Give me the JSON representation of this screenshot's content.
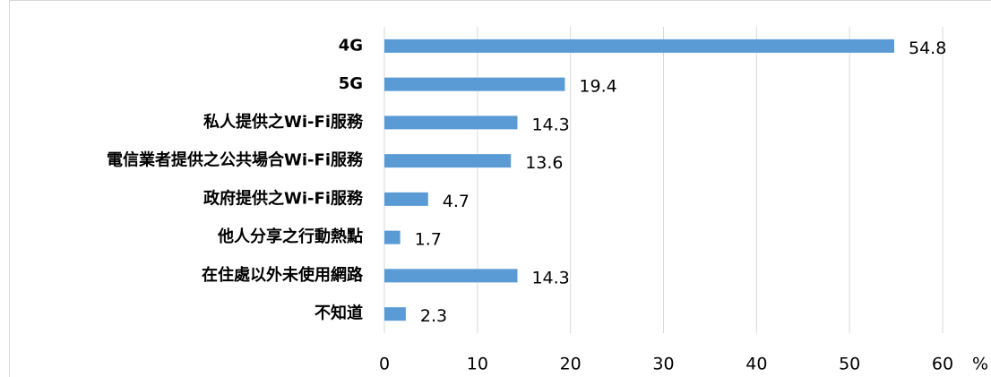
{
  "chart_data": {
    "type": "bar",
    "orientation": "horizontal",
    "categories": [
      "4G",
      "5G",
      "私人提供之Wi-Fi服務",
      "電信業者提供之公共場合Wi-Fi服務",
      "政府提供之Wi-Fi服務",
      "他人分享之行動熱點",
      "在住處以外未使用網路",
      "不知道"
    ],
    "values": [
      54.8,
      19.4,
      14.3,
      13.6,
      4.7,
      1.7,
      14.3,
      2.3
    ],
    "color": "#5b9bd5",
    "xlabel": "%",
    "xlim": [
      0,
      60
    ],
    "xticks": [
      0,
      10,
      20,
      30,
      40,
      50,
      60
    ],
    "grid": true
  }
}
